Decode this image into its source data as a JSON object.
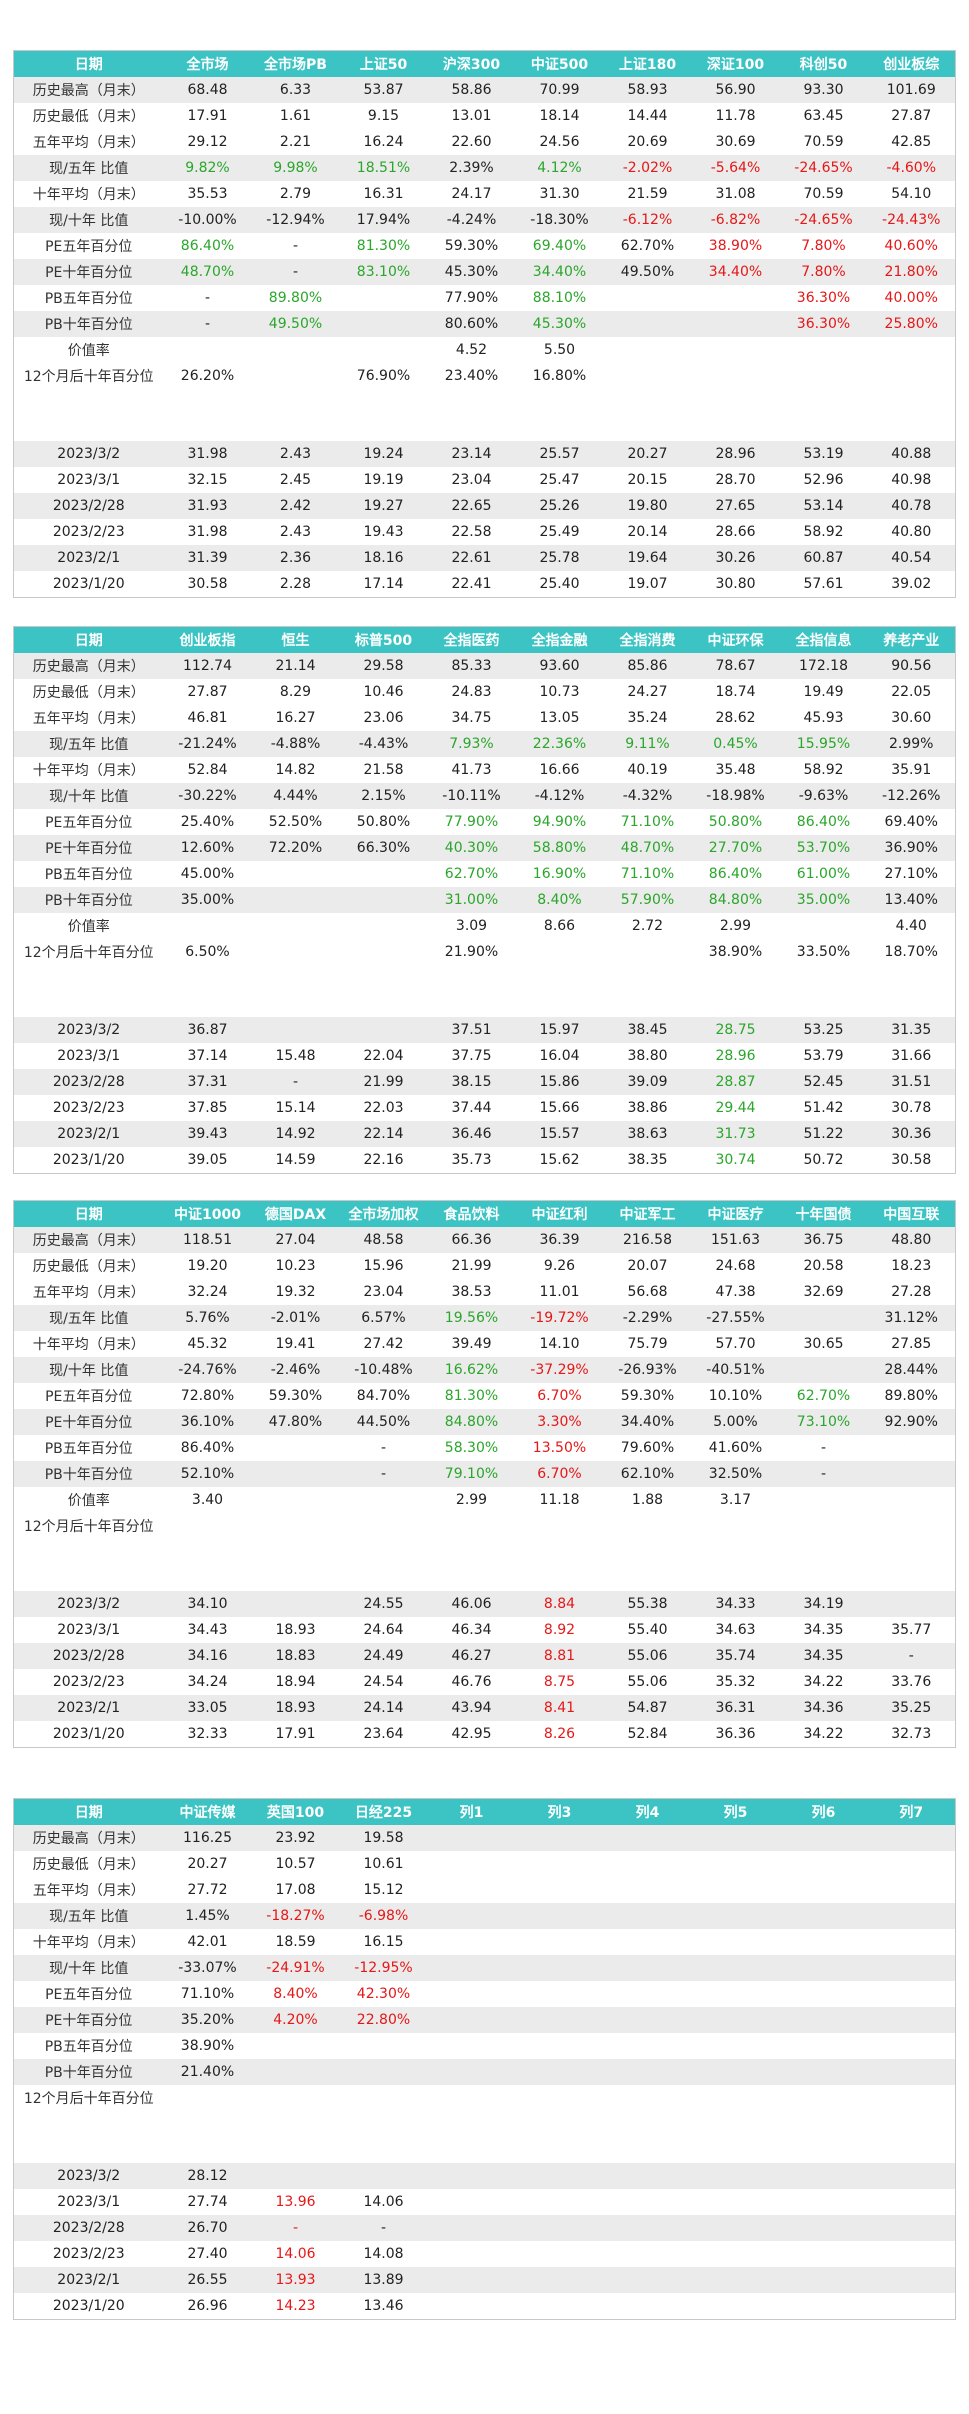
{
  "colors": {
    "header_bg": "#3cc4c4",
    "header_text": "#ffffff",
    "positive": "#2aa62a",
    "negative": "#e61717",
    "stripe": "#ebebeb"
  },
  "tables": [
    {
      "headers": [
        "日期",
        "全市场",
        "全市场PB",
        "上证50",
        "沪深300",
        "中证500",
        "上证180",
        "深证100",
        "科创50",
        "创业板综"
      ],
      "stats": [
        [
          "历史最高（月末）",
          "68.48",
          "6.33",
          "53.87",
          "58.86",
          "70.99",
          "58.93",
          "56.90",
          "93.30",
          "101.69"
        ],
        [
          "历史最低（月末）",
          "17.91",
          "1.61",
          "9.15",
          "13.01",
          "18.14",
          "14.44",
          "11.78",
          "63.45",
          "27.87"
        ],
        [
          "五年平均（月末）",
          "29.12",
          "2.21",
          "16.24",
          "22.60",
          "24.56",
          "20.69",
          "30.69",
          "70.59",
          "42.85"
        ],
        [
          "现/五年 比值",
          "9.82%",
          "9.98%",
          "18.51%",
          "2.39%",
          "4.12%",
          "-2.02%",
          "-5.64%",
          "-24.65%",
          "-4.60%"
        ],
        [
          "十年平均（月末）",
          "35.53",
          "2.79",
          "16.31",
          "24.17",
          "31.30",
          "21.59",
          "31.08",
          "70.59",
          "54.10"
        ],
        [
          "现/十年 比值",
          "-10.00%",
          "-12.94%",
          "17.94%",
          "-4.24%",
          "-18.30%",
          "-6.12%",
          "-6.82%",
          "-24.65%",
          "-24.43%"
        ],
        [
          "PE五年百分位",
          "86.40%",
          "-",
          "81.30%",
          "59.30%",
          "69.40%",
          "62.70%",
          "38.90%",
          "7.80%",
          "40.60%"
        ],
        [
          "PE十年百分位",
          "48.70%",
          "-",
          "83.10%",
          "45.30%",
          "34.40%",
          "49.50%",
          "34.40%",
          "7.80%",
          "21.80%"
        ],
        [
          "PB五年百分位",
          "-",
          "89.80%",
          "",
          "77.90%",
          "88.10%",
          "",
          "",
          "36.30%",
          "40.00%"
        ],
        [
          "PB十年百分位",
          "-",
          "49.50%",
          "",
          "80.60%",
          "45.30%",
          "",
          "",
          "36.30%",
          "25.80%"
        ],
        [
          "价值率",
          "",
          "",
          "",
          "4.52",
          "5.50",
          "",
          "",
          "",
          ""
        ],
        [
          "12个月后十年百分位",
          "26.20%",
          "",
          "76.90%",
          "23.40%",
          "16.80%",
          "",
          "",
          "",
          ""
        ]
      ],
      "dates": [
        [
          "2023/3/2",
          "31.98",
          "2.43",
          "19.24",
          "23.14",
          "25.57",
          "20.27",
          "28.96",
          "53.19",
          "40.88"
        ],
        [
          "2023/3/1",
          "32.15",
          "2.45",
          "19.19",
          "23.04",
          "25.47",
          "20.15",
          "28.70",
          "52.96",
          "40.98"
        ],
        [
          "2023/2/28",
          "31.93",
          "2.42",
          "19.27",
          "22.65",
          "25.26",
          "19.80",
          "27.65",
          "53.14",
          "40.78"
        ],
        [
          "2023/2/23",
          "31.98",
          "2.43",
          "19.43",
          "22.58",
          "25.49",
          "20.14",
          "28.66",
          "58.92",
          "40.80"
        ],
        [
          "2023/2/1",
          "31.39",
          "2.36",
          "18.16",
          "22.61",
          "25.78",
          "19.64",
          "30.26",
          "60.87",
          "40.54"
        ],
        [
          "2023/1/20",
          "30.58",
          "2.28",
          "17.14",
          "22.41",
          "25.40",
          "19.07",
          "30.80",
          "57.61",
          "39.02"
        ]
      ]
    },
    {
      "headers": [
        "日期",
        "创业板指",
        "恒生",
        "标普500",
        "全指医药",
        "全指金融",
        "全指消费",
        "中证环保",
        "全指信息",
        "养老产业"
      ],
      "stats": [
        [
          "历史最高（月末）",
          "112.74",
          "21.14",
          "29.58",
          "85.33",
          "93.60",
          "85.86",
          "78.67",
          "172.18",
          "90.56"
        ],
        [
          "历史最低（月末）",
          "27.87",
          "8.29",
          "10.46",
          "24.83",
          "10.73",
          "24.27",
          "18.74",
          "19.49",
          "22.05"
        ],
        [
          "五年平均（月末）",
          "46.81",
          "16.27",
          "23.06",
          "34.75",
          "13.05",
          "35.24",
          "28.62",
          "45.93",
          "30.60"
        ],
        [
          "现/五年 比值",
          "-21.24%",
          "-4.88%",
          "-4.43%",
          "7.93%",
          "22.36%",
          "9.11%",
          "0.45%",
          "15.95%",
          "2.99%"
        ],
        [
          "十年平均（月末）",
          "52.84",
          "14.82",
          "21.58",
          "41.73",
          "16.66",
          "40.19",
          "35.48",
          "58.92",
          "35.91"
        ],
        [
          "现/十年 比值",
          "-30.22%",
          "4.44%",
          "2.15%",
          "-10.11%",
          "-4.12%",
          "-4.32%",
          "-18.98%",
          "-9.63%",
          "-12.26%"
        ],
        [
          "PE五年百分位",
          "25.40%",
          "52.50%",
          "50.80%",
          "77.90%",
          "94.90%",
          "71.10%",
          "50.80%",
          "86.40%",
          "69.40%"
        ],
        [
          "PE十年百分位",
          "12.60%",
          "72.20%",
          "66.30%",
          "40.30%",
          "58.80%",
          "48.70%",
          "27.70%",
          "53.70%",
          "36.90%"
        ],
        [
          "PB五年百分位",
          "45.00%",
          "",
          "",
          "62.70%",
          "16.90%",
          "71.10%",
          "86.40%",
          "61.00%",
          "27.10%"
        ],
        [
          "PB十年百分位",
          "35.00%",
          "",
          "",
          "31.00%",
          "8.40%",
          "57.90%",
          "84.80%",
          "35.00%",
          "13.40%"
        ],
        [
          "价值率",
          "",
          "",
          "",
          "3.09",
          "8.66",
          "2.72",
          "2.99",
          "",
          "4.40"
        ],
        [
          "12个月后十年百分位",
          "6.50%",
          "",
          "",
          "21.90%",
          "",
          "",
          "38.90%",
          "33.50%",
          "18.70%"
        ]
      ],
      "dates": [
        [
          "2023/3/2",
          "36.87",
          "",
          "",
          "37.51",
          "15.97",
          "38.45",
          "28.75",
          "53.25",
          "31.35"
        ],
        [
          "2023/3/1",
          "37.14",
          "15.48",
          "22.04",
          "37.75",
          "16.04",
          "38.80",
          "28.96",
          "53.79",
          "31.66"
        ],
        [
          "2023/2/28",
          "37.31",
          "-",
          "21.99",
          "38.15",
          "15.86",
          "39.09",
          "28.87",
          "52.45",
          "31.51"
        ],
        [
          "2023/2/23",
          "37.85",
          "15.14",
          "22.03",
          "37.44",
          "15.66",
          "38.86",
          "29.44",
          "51.42",
          "30.78"
        ],
        [
          "2023/2/1",
          "39.43",
          "14.92",
          "22.14",
          "36.46",
          "15.57",
          "38.63",
          "31.73",
          "51.22",
          "30.36"
        ],
        [
          "2023/1/20",
          "39.05",
          "14.59",
          "22.16",
          "35.73",
          "15.62",
          "38.35",
          "30.74",
          "50.72",
          "30.58"
        ]
      ]
    },
    {
      "headers": [
        "日期",
        "中证1000",
        "德国DAX",
        "全市场加权",
        "食品饮料",
        "中证红利",
        "中证军工",
        "中证医疗",
        "十年国债",
        "中国互联"
      ],
      "stats": [
        [
          "历史最高（月末）",
          "118.51",
          "27.04",
          "48.58",
          "66.36",
          "36.39",
          "216.58",
          "151.63",
          "36.75",
          "48.80"
        ],
        [
          "历史最低（月末）",
          "19.20",
          "10.23",
          "15.96",
          "21.99",
          "9.26",
          "20.07",
          "24.68",
          "20.58",
          "18.23"
        ],
        [
          "五年平均（月末）",
          "32.24",
          "19.32",
          "23.04",
          "38.53",
          "11.01",
          "56.68",
          "47.38",
          "32.69",
          "27.28"
        ],
        [
          "现/五年 比值",
          "5.76%",
          "-2.01%",
          "6.57%",
          "19.56%",
          "-19.72%",
          "-2.29%",
          "-27.55%",
          "",
          "31.12%"
        ],
        [
          "十年平均（月末）",
          "45.32",
          "19.41",
          "27.42",
          "39.49",
          "14.10",
          "75.79",
          "57.70",
          "30.65",
          "27.85"
        ],
        [
          "现/十年 比值",
          "-24.76%",
          "-2.46%",
          "-10.48%",
          "16.62%",
          "-37.29%",
          "-26.93%",
          "-40.51%",
          "",
          "28.44%"
        ],
        [
          "PE五年百分位",
          "72.80%",
          "59.30%",
          "84.70%",
          "81.30%",
          "6.70%",
          "59.30%",
          "10.10%",
          "62.70%",
          "89.80%"
        ],
        [
          "PE十年百分位",
          "36.10%",
          "47.80%",
          "44.50%",
          "84.80%",
          "3.30%",
          "34.40%",
          "5.00%",
          "73.10%",
          "92.90%"
        ],
        [
          "PB五年百分位",
          "86.40%",
          "",
          "-",
          "58.30%",
          "13.50%",
          "79.60%",
          "41.60%",
          "-",
          ""
        ],
        [
          "PB十年百分位",
          "52.10%",
          "",
          "-",
          "79.10%",
          "6.70%",
          "62.10%",
          "32.50%",
          "-",
          ""
        ],
        [
          "价值率",
          "3.40",
          "",
          "",
          "2.99",
          "11.18",
          "1.88",
          "3.17",
          "",
          ""
        ],
        [
          "12个月后十年百分位",
          "",
          "",
          "",
          "",
          "",
          "",
          "",
          "",
          ""
        ]
      ],
      "dates": [
        [
          "2023/3/2",
          "34.10",
          "",
          "24.55",
          "46.06",
          "8.84",
          "55.38",
          "34.33",
          "34.19",
          ""
        ],
        [
          "2023/3/1",
          "34.43",
          "18.93",
          "24.64",
          "46.34",
          "8.92",
          "55.40",
          "34.63",
          "34.35",
          "35.77"
        ],
        [
          "2023/2/28",
          "34.16",
          "18.83",
          "24.49",
          "46.27",
          "8.81",
          "55.06",
          "35.74",
          "34.35",
          "-"
        ],
        [
          "2023/2/23",
          "34.24",
          "18.94",
          "24.54",
          "46.76",
          "8.75",
          "55.06",
          "35.32",
          "34.22",
          "33.76"
        ],
        [
          "2023/2/1",
          "33.05",
          "18.93",
          "24.14",
          "43.94",
          "8.41",
          "54.87",
          "36.31",
          "34.36",
          "35.25"
        ],
        [
          "2023/1/20",
          "32.33",
          "17.91",
          "23.64",
          "42.95",
          "8.26",
          "52.84",
          "36.36",
          "34.22",
          "32.73"
        ]
      ]
    },
    {
      "headers": [
        "日期",
        "中证传媒",
        "英国100",
        "日经225",
        "列1",
        "列3",
        "列4",
        "列5",
        "列6",
        "列7"
      ],
      "stats": [
        [
          "历史最高（月末）",
          "116.25",
          "23.92",
          "19.58",
          "",
          "",
          "",
          "",
          "",
          ""
        ],
        [
          "历史最低（月末）",
          "20.27",
          "10.57",
          "10.61",
          "",
          "",
          "",
          "",
          "",
          ""
        ],
        [
          "五年平均（月末）",
          "27.72",
          "17.08",
          "15.12",
          "",
          "",
          "",
          "",
          "",
          ""
        ],
        [
          "现/五年 比值",
          "1.45%",
          "-18.27%",
          "-6.98%",
          "",
          "",
          "",
          "",
          "",
          ""
        ],
        [
          "十年平均（月末）",
          "42.01",
          "18.59",
          "16.15",
          "",
          "",
          "",
          "",
          "",
          ""
        ],
        [
          "现/十年 比值",
          "-33.07%",
          "-24.91%",
          "-12.95%",
          "",
          "",
          "",
          "",
          "",
          ""
        ],
        [
          "PE五年百分位",
          "71.10%",
          "8.40%",
          "42.30%",
          "",
          "",
          "",
          "",
          "",
          ""
        ],
        [
          "PE十年百分位",
          "35.20%",
          "4.20%",
          "22.80%",
          "",
          "",
          "",
          "",
          "",
          ""
        ],
        [
          "PB五年百分位",
          "38.90%",
          "",
          "",
          "",
          "",
          "",
          "",
          "",
          ""
        ],
        [
          "PB十年百分位",
          "21.40%",
          "",
          "",
          "",
          "",
          "",
          "",
          "",
          ""
        ],
        [
          "12个月后十年百分位",
          "",
          "",
          "",
          "",
          "",
          "",
          "",
          "",
          ""
        ]
      ],
      "dates": [
        [
          "2023/3/2",
          "28.12",
          "",
          "",
          "",
          "",
          "",
          "",
          "",
          ""
        ],
        [
          "2023/3/1",
          "27.74",
          "13.96",
          "14.06",
          "",
          "",
          "",
          "",
          "",
          ""
        ],
        [
          "2023/2/28",
          "26.70",
          "-",
          "-",
          "",
          "",
          "",
          "",
          "",
          ""
        ],
        [
          "2023/2/23",
          "27.40",
          "14.06",
          "14.08",
          "",
          "",
          "",
          "",
          "",
          ""
        ],
        [
          "2023/2/1",
          "26.55",
          "13.93",
          "13.89",
          "",
          "",
          "",
          "",
          "",
          ""
        ],
        [
          "2023/1/20",
          "26.96",
          "14.23",
          "13.46",
          "",
          "",
          "",
          "",
          "",
          ""
        ]
      ]
    }
  ]
}
